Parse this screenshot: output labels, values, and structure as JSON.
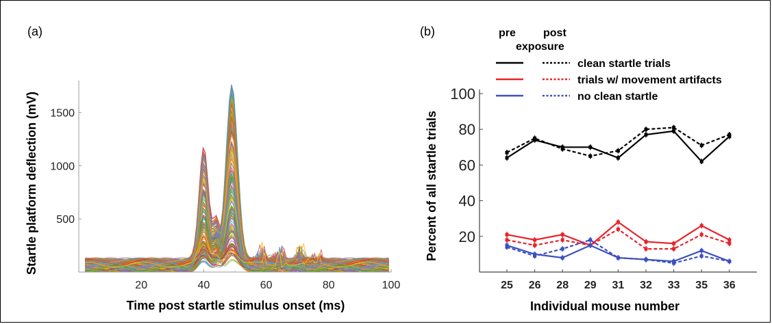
{
  "chart_data": [
    {
      "panel_label": "(a)",
      "type": "line",
      "xlabel": "Time post startle stimulus onset (ms)",
      "ylabel": "Startle platform deflection (mV)",
      "xlim": [
        0,
        100
      ],
      "ylim": [
        0,
        1800
      ],
      "x_ticks": [
        20,
        40,
        60,
        80,
        100
      ],
      "y_ticks": [
        500,
        1000,
        1500
      ],
      "grid": false,
      "traces_description_peak_values": {
        "first_peak_x": 40,
        "second_peak_x": 49,
        "max_first_peak": 1100,
        "max_second_peak": 1700
      }
    },
    {
      "panel_label": "(b)",
      "type": "line",
      "xlabel": "Individual mouse number",
      "ylabel": "Percent of all startle trials",
      "ylim": [
        0,
        100
      ],
      "y_ticks": [
        20,
        40,
        60,
        80,
        100
      ],
      "categories": [
        "25",
        "26",
        "28",
        "29",
        "31",
        "32",
        "33",
        "35",
        "36"
      ],
      "legend_header": {
        "pre": "pre",
        "post": "post",
        "exposure_left": "expo",
        "exposure_right": "sure"
      },
      "legend_position": "top",
      "series": [
        {
          "name": "clean startle trials",
          "phase": "pre",
          "color": "#000000",
          "style": "solid",
          "values": [
            64,
            74,
            70,
            70,
            64,
            77,
            79,
            62,
            76
          ]
        },
        {
          "name": "clean startle trials",
          "phase": "post",
          "color": "#000000",
          "style": "dotted",
          "values": [
            67,
            75,
            69,
            65,
            68,
            80,
            81,
            71,
            77
          ]
        },
        {
          "name": "trials w/ movement artifacts",
          "phase": "pre",
          "color": "#e8232a",
          "style": "solid",
          "values": [
            21,
            18,
            21,
            15,
            28,
            17,
            16,
            26,
            18
          ]
        },
        {
          "name": "trials w/ movement artifacts",
          "phase": "post",
          "color": "#e8232a",
          "style": "dotted",
          "values": [
            18,
            15,
            18,
            15,
            24,
            13,
            13,
            21,
            16
          ]
        },
        {
          "name": "no clean startle",
          "phase": "pre",
          "color": "#3b4fc0",
          "style": "solid",
          "values": [
            15,
            10,
            8,
            15,
            8,
            7,
            6,
            12,
            6
          ]
        },
        {
          "name": "no clean startle",
          "phase": "post",
          "color": "#3b4fc0",
          "style": "dotted",
          "values": [
            14,
            9,
            13,
            18,
            8,
            7,
            5,
            9,
            6
          ]
        }
      ]
    }
  ]
}
